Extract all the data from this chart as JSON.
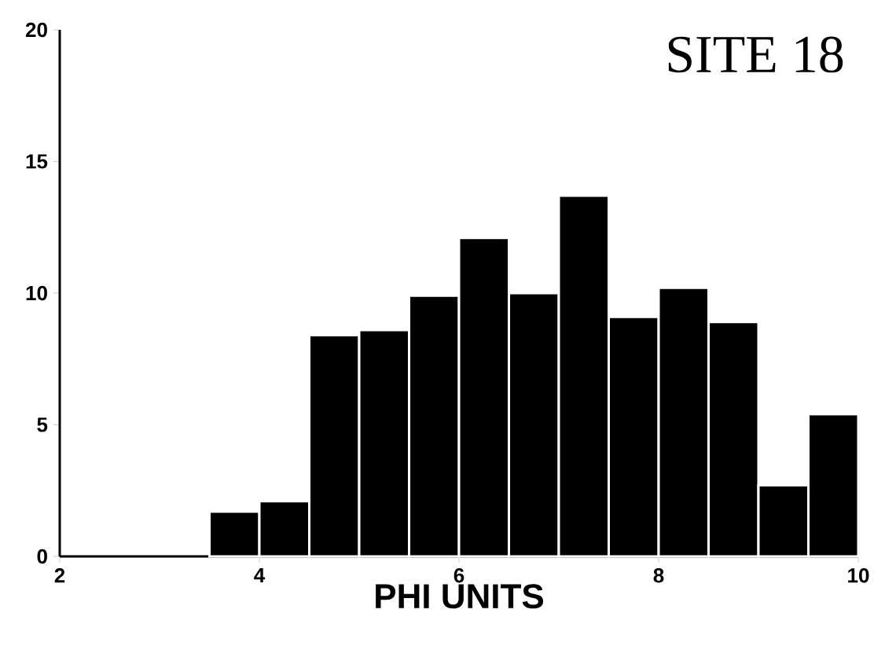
{
  "chart_data": {
    "type": "histogram",
    "title": "SITE 18",
    "xlabel": "PHI UNITS",
    "bins": [
      3.5,
      4,
      4.5,
      5,
      5.5,
      6,
      6.5,
      7,
      7.5,
      8,
      8.5,
      9,
      9.5,
      10
    ],
    "values": [
      1.7,
      2.1,
      8.4,
      8.6,
      9.9,
      12.1,
      10.0,
      13.7,
      9.1,
      10.2,
      8.9,
      2.7,
      5.4
    ],
    "color": "#000000",
    "xlim": [
      2,
      10
    ],
    "ylim": [
      0,
      20
    ],
    "xticks": [
      2,
      4,
      6,
      8,
      10
    ],
    "yticks": [
      0,
      5,
      10,
      15,
      20
    ],
    "grid": false
  }
}
